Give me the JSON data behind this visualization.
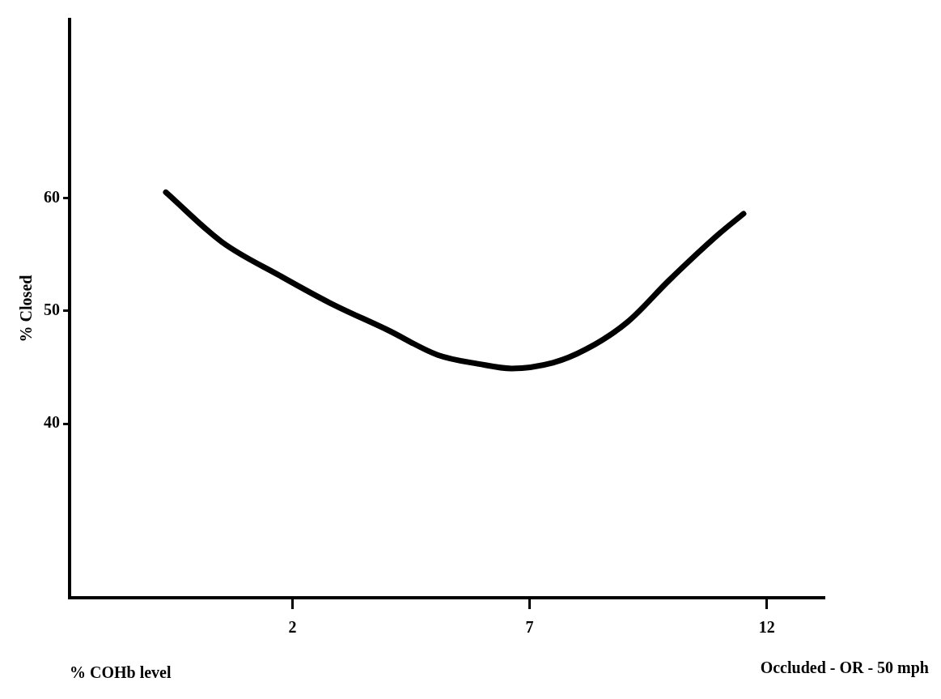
{
  "chart_data": {
    "type": "line",
    "xlabel": "% COHb level",
    "ylabel": "% Closed",
    "annotations": [
      "Occluded - OR - 50 mph"
    ],
    "x": [
      -0.67,
      0.51,
      1.74,
      2.79,
      4.01,
      5.06,
      5.93,
      6.62,
      7.49,
      8.19,
      9.06,
      9.94,
      10.99,
      11.51
    ],
    "series": [
      {
        "color": "#000000",
        "values": [
          60.5,
          56.1,
          53.1,
          50.7,
          48.3,
          46.1,
          45.3,
          44.9,
          45.4,
          46.6,
          49.0,
          52.7,
          56.8,
          58.6
        ]
      }
    ],
    "xlim": [
      -2.7,
      13.2
    ],
    "ylim": [
      24.6,
      75.8
    ],
    "xticks": [
      2,
      7,
      12
    ],
    "yticks": [
      40,
      50,
      60
    ],
    "grid": false,
    "legend": false,
    "marker": "none",
    "line_style": "solid"
  }
}
